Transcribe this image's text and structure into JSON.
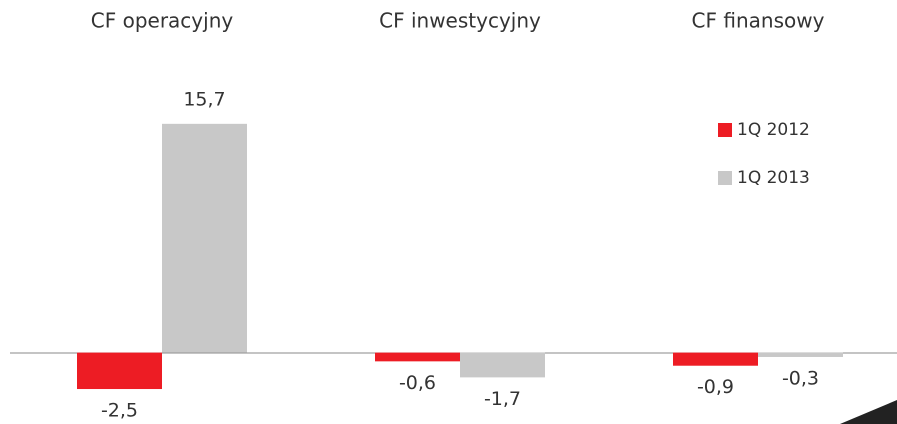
{
  "chart_data": {
    "type": "bar",
    "categories": [
      "CF operacyjny",
      "CF inwestycyjny",
      "CF finansowy"
    ],
    "series": [
      {
        "name": "1Q 2012",
        "color": "#ed1c24",
        "values": [
          -2.5,
          -0.6,
          -0.9
        ],
        "value_labels": [
          "-2,5",
          "-0,6",
          "-0,9"
        ]
      },
      {
        "name": "1Q 2013",
        "color": "#c8c8c8",
        "values": [
          15.7,
          -1.7,
          -0.3
        ],
        "value_labels": [
          "15,7",
          "-1,7",
          "-0,3"
        ]
      }
    ],
    "ylim": [
      -4.9,
      24.2
    ],
    "legend": "right"
  }
}
